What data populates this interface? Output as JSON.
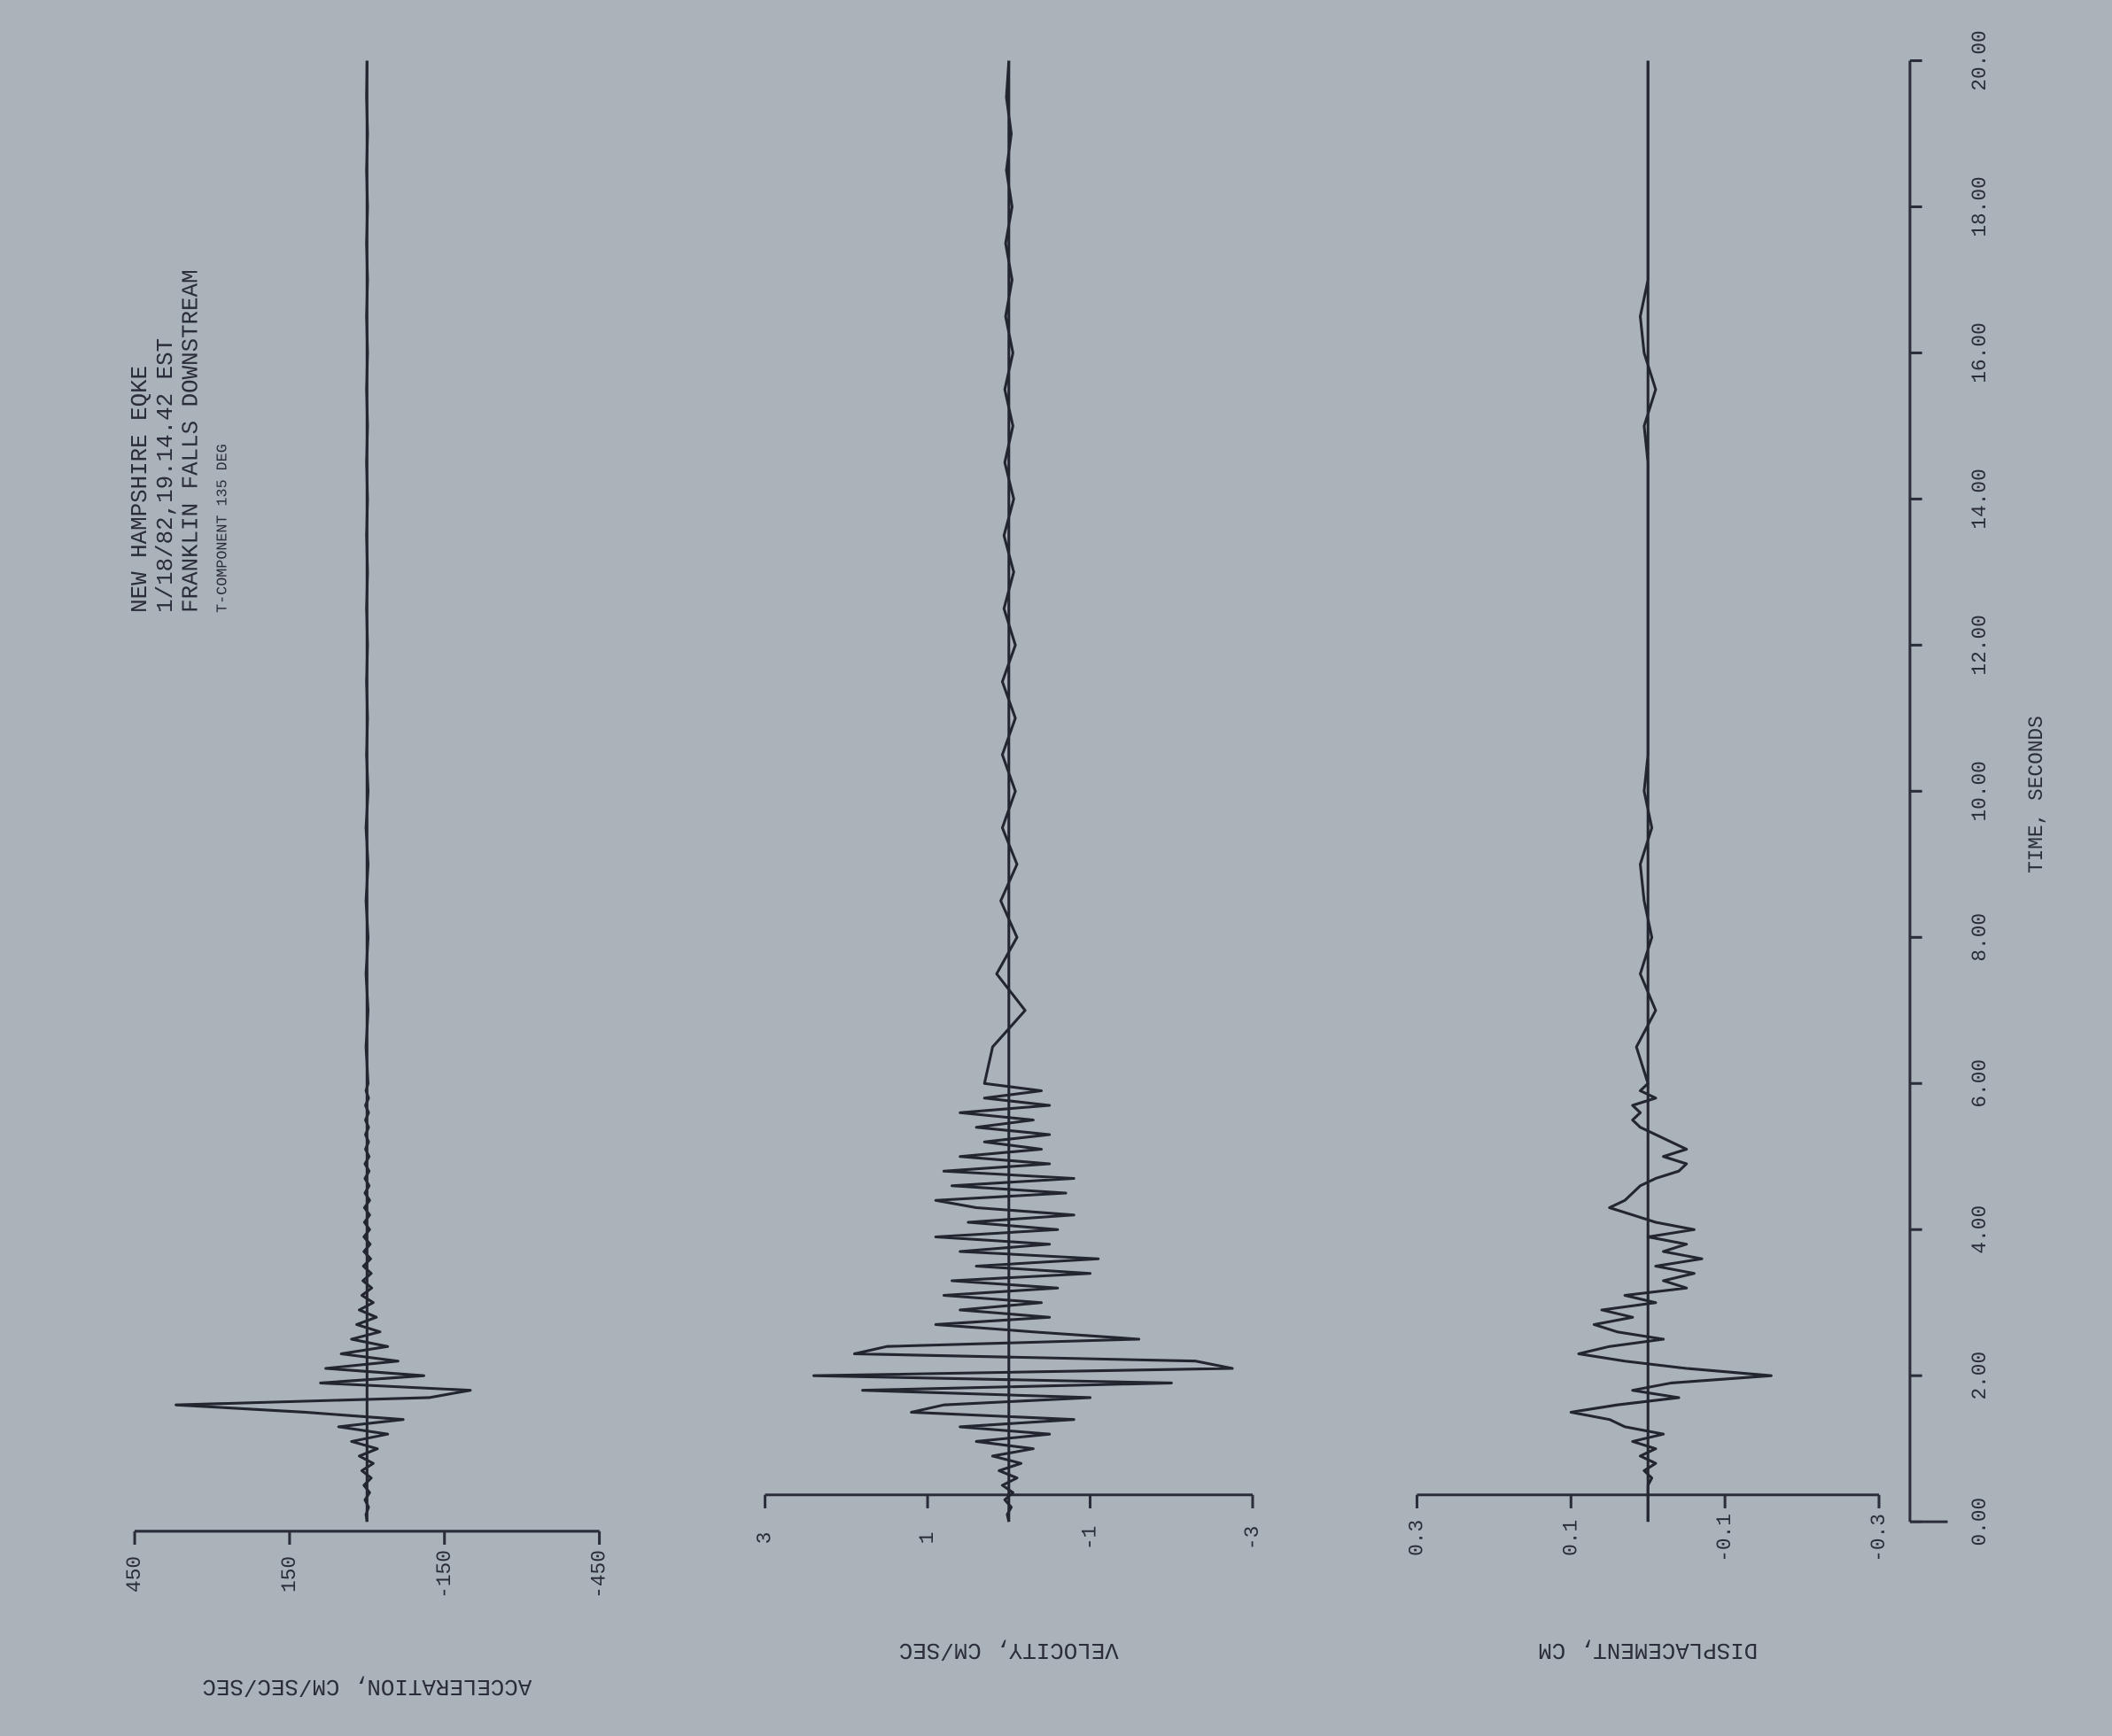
{
  "chart_data": {
    "type": "line",
    "title": "NEW HAMPSHIRE EQKE",
    "annotations": [
      "1/18/82,19.14.42 EST",
      "FRANKLIN FALLS DOWNSTREAM",
      "T-COMPONENT  135 DEG"
    ],
    "xlabel": "TIME, SECONDS",
    "xlim": [
      0,
      20
    ],
    "xticks": [
      {
        "value": 0,
        "label": "0.00"
      },
      {
        "value": 2,
        "label": "2.00"
      },
      {
        "value": 4,
        "label": "4.00"
      },
      {
        "value": 6,
        "label": "6.00"
      },
      {
        "value": 8,
        "label": "8.00"
      },
      {
        "value": 10,
        "label": "10.00"
      },
      {
        "value": 12,
        "label": "12.00"
      },
      {
        "value": 14,
        "label": "14.00"
      },
      {
        "value": 16,
        "label": "16.00"
      },
      {
        "value": 18,
        "label": "18.00"
      },
      {
        "value": 20,
        "label": "20.00"
      }
    ],
    "x": [
      0,
      0.1,
      0.2,
      0.3,
      0.4,
      0.5,
      0.6,
      0.7,
      0.8,
      0.9,
      1,
      1.1,
      1.2,
      1.3,
      1.4,
      1.5,
      1.6,
      1.7,
      1.8,
      1.9,
      2,
      2.1,
      2.2,
      2.3,
      2.4,
      2.5,
      2.6,
      2.7,
      2.8,
      2.9,
      3,
      3.1,
      3.2,
      3.3,
      3.4,
      3.5,
      3.6,
      3.7,
      3.8,
      3.9,
      4,
      4.1,
      4.2,
      4.3,
      4.4,
      4.5,
      4.6,
      4.7,
      4.8,
      4.9,
      5,
      5.1,
      5.2,
      5.3,
      5.4,
      5.5,
      5.6,
      5.7,
      5.8,
      5.9,
      6,
      6.5,
      7,
      7.5,
      8,
      8.5,
      9,
      9.5,
      10,
      10.5,
      11,
      11.5,
      12,
      12.5,
      13,
      13.5,
      14,
      14.5,
      15,
      15.5,
      16,
      16.5,
      17,
      17.5,
      18,
      18.5,
      19,
      19.5,
      20
    ],
    "series": [
      {
        "name": "ACCELERATION, CM/SEC/SEC",
        "color": "#23252f",
        "ylim": [
          -450,
          450
        ],
        "yticks": [
          450,
          150,
          -150,
          -450
        ],
        "values": [
          0,
          2,
          -3,
          4,
          -5,
          6,
          -8,
          10,
          -12,
          15,
          -20,
          30,
          -40,
          55,
          -70,
          120,
          370,
          -120,
          -200,
          90,
          -110,
          80,
          -60,
          50,
          -40,
          30,
          -25,
          20,
          -18,
          15,
          -12,
          10,
          -9,
          8,
          -8,
          7,
          -7,
          6,
          -6,
          6,
          -5,
          5,
          -5,
          5,
          -5,
          4,
          -4,
          4,
          -4,
          4,
          -4,
          3,
          -3,
          3,
          -3,
          3,
          -3,
          3,
          -3,
          2,
          -2,
          2,
          -2,
          2,
          -2,
          2,
          -2,
          2,
          -2,
          1,
          -1,
          1,
          -1,
          1,
          -1,
          1,
          -1,
          1,
          -1,
          1,
          -1,
          1,
          -1,
          1,
          -1,
          1,
          -1,
          1,
          0
        ]
      },
      {
        "name": "VELOCITY, CM/SEC",
        "color": "#23252f",
        "ylim": [
          -3,
          3
        ],
        "yticks": [
          3,
          1,
          -1,
          -3
        ],
        "values": [
          0,
          0.02,
          -0.03,
          0.05,
          -0.05,
          0.08,
          -0.1,
          0.12,
          -0.15,
          0.2,
          -0.3,
          0.4,
          -0.5,
          0.6,
          -0.8,
          1.2,
          0.8,
          -1.0,
          1.8,
          -2.0,
          2.4,
          -2.75,
          -2.3,
          1.9,
          1.5,
          -1.6,
          -0.3,
          0.9,
          -0.5,
          0.6,
          -0.4,
          0.8,
          -0.6,
          0.7,
          -1.0,
          0.4,
          -1.1,
          0.6,
          -0.5,
          0.9,
          -0.6,
          0.5,
          -0.8,
          0.4,
          0.9,
          -0.7,
          0.7,
          -0.8,
          0.8,
          -0.5,
          0.6,
          -0.4,
          0.3,
          -0.5,
          0.4,
          -0.3,
          0.6,
          -0.5,
          0.3,
          -0.4,
          0.3,
          0.2,
          -0.2,
          0.15,
          -0.1,
          0.1,
          -0.1,
          0.08,
          -0.08,
          0.08,
          -0.08,
          0.08,
          -0.08,
          0.06,
          -0.06,
          0.06,
          -0.06,
          0.05,
          -0.05,
          0.05,
          -0.05,
          0.04,
          -0.04,
          0.04,
          -0.04,
          0.03,
          -0.03,
          0.03,
          0
        ]
      },
      {
        "name": "DISPLACEMENT, CM",
        "color": "#23252f",
        "ylim": [
          -0.3,
          0.3
        ],
        "yticks": [
          0.3,
          0.1,
          -0.1,
          -0.3
        ],
        "values": [
          0,
          0,
          0,
          0,
          0,
          0,
          -0.005,
          0.005,
          -0.01,
          0.01,
          -0.01,
          0.02,
          -0.02,
          0.03,
          0.05,
          0.1,
          0.04,
          -0.04,
          0.02,
          -0.03,
          -0.16,
          -0.05,
          0.03,
          0.09,
          0.05,
          -0.02,
          0.04,
          0.07,
          0.02,
          0.06,
          -0.01,
          0.03,
          -0.05,
          -0.02,
          -0.06,
          -0.01,
          -0.07,
          -0.02,
          -0.05,
          0,
          -0.06,
          -0.01,
          0.02,
          0.05,
          0.03,
          0.02,
          0.01,
          -0.01,
          -0.04,
          -0.05,
          -0.02,
          -0.05,
          -0.03,
          -0.01,
          0.01,
          0.02,
          0.01,
          0.02,
          -0.01,
          0.01,
          0,
          0.015,
          -0.01,
          0.01,
          -0.005,
          0.005,
          0.01,
          -0.005,
          0.005,
          0,
          0,
          0,
          0,
          0,
          0,
          0,
          0,
          0,
          0.005,
          -0.01,
          0.005,
          0.01,
          0,
          0,
          0,
          0,
          0,
          0,
          0
        ]
      }
    ]
  }
}
